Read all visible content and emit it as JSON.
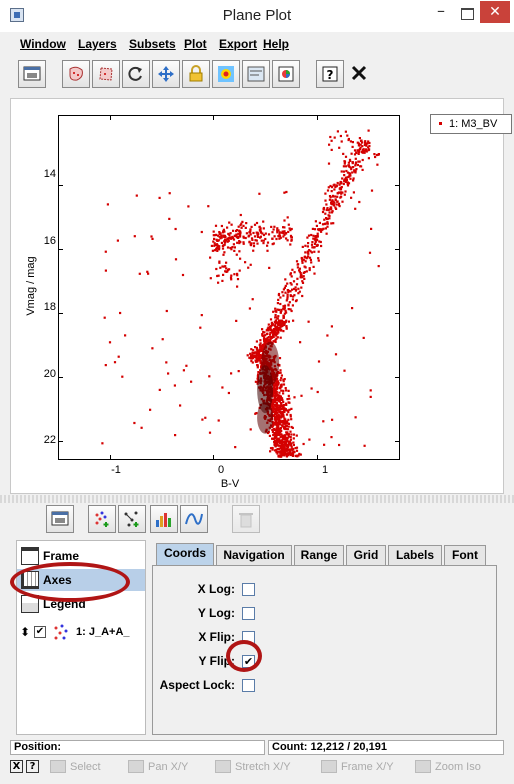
{
  "window": {
    "title": "Plane Plot",
    "minimize": "–",
    "close": "✕"
  },
  "menu": [
    "Window",
    "Layers",
    "Subsets",
    "Plot",
    "Export",
    "Help"
  ],
  "toolbar": [
    "window-icon",
    "subset-blob-icon",
    "subset-region-icon",
    "replot-icon",
    "navigate-icon",
    "lock-icon",
    "aux-colour-icon",
    "legend-icon",
    "export-image-icon",
    "help-icon",
    "close-icon"
  ],
  "plot": {
    "legend": "1: M3_BV",
    "xlabel": "B-V",
    "ylabel": "Vmag / mag",
    "x_ticks": [
      "-1",
      "0",
      "1"
    ],
    "y_ticks": [
      "14",
      "16",
      "18",
      "20",
      "22"
    ],
    "point_color": "#d40000"
  },
  "chart_data": {
    "type": "scatter",
    "xlabel": "B-V",
    "ylabel": "Vmag / mag",
    "xlim": [
      -1.5,
      1.8
    ],
    "ylim": [
      22.6,
      11.8
    ],
    "y_flipped": true,
    "series": [
      {
        "name": "1: M3_BV",
        "color": "#d40000"
      }
    ]
  },
  "controls": {
    "items": [
      "Frame",
      "Axes",
      "Legend"
    ],
    "layer": "1: J_A+A_"
  },
  "tabs": [
    "Coords",
    "Navigation",
    "Range",
    "Grid",
    "Labels",
    "Font"
  ],
  "coords": {
    "x_log": "X Log:",
    "y_log": "Y Log:",
    "x_flip": "X Flip:",
    "y_flip": "Y Flip:",
    "aspect": "Aspect Lock:",
    "y_flip_checked": "✔"
  },
  "status": {
    "position": "Position:",
    "count": "Count: 12,212 / 20,191"
  },
  "hints": [
    "Select",
    "Pan X/Y",
    "Stretch X/Y",
    "Frame X/Y",
    "Zoom Iso"
  ],
  "hint_buttons": [
    "X",
    "?"
  ]
}
